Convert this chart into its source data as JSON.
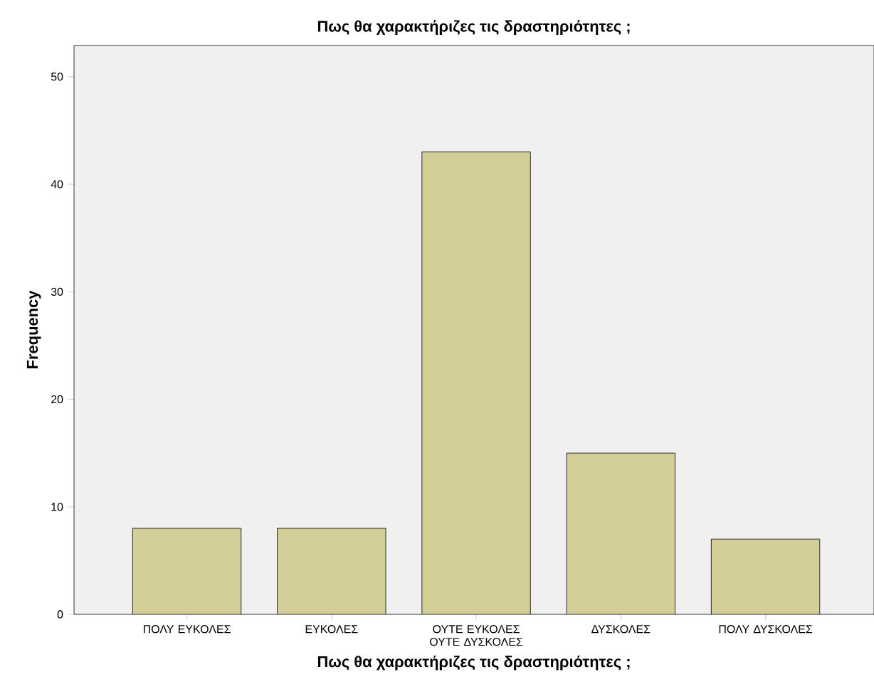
{
  "chart_data": {
    "type": "bar",
    "title": "Πως θα χαρακτήριζες τις δραστηριότητες ;",
    "xlabel": "Πως θα χαρακτήριζες τις δραστηριότητες ;",
    "ylabel": "Frequency",
    "categories": [
      "ΠΟΛΥ ΕΥΚΟΛΕΣ",
      "ΕΥΚΟΛΕΣ",
      "ΟΥΤΕ ΕΥΚΟΛΕΣ ΟΥΤΕ ΔΥΣΚΟΛΕΣ",
      "ΔΥΣΚΟΛΕΣ",
      "ΠΟΛΥ ΔΥΣΚΟΛΕΣ"
    ],
    "values": [
      8,
      8,
      43,
      15,
      7
    ],
    "color": "#d3ce97",
    "ylim": [
      0,
      52.9
    ],
    "yticks": [
      0,
      10,
      20,
      30,
      40,
      50
    ]
  }
}
